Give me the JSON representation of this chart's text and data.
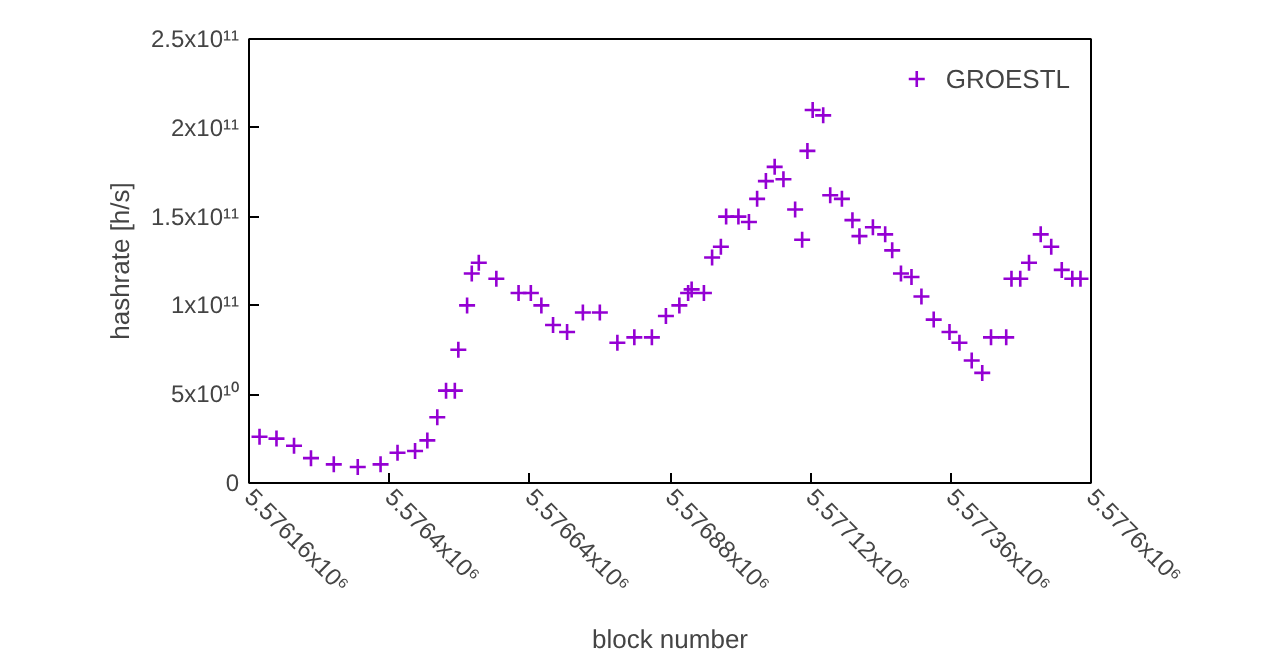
{
  "chart_data": {
    "type": "scatter",
    "xlabel": "block number",
    "ylabel": "hashrate [h/s]",
    "legend": "top right",
    "marker": "cross",
    "xlim": [
      5576160,
      5577600
    ],
    "ylim": [
      0,
      250000000000.0
    ],
    "xticks": [
      {
        "value": 5576160,
        "label": "5.57616x10⁶"
      },
      {
        "value": 5576400,
        "label": "5.5764x10⁶"
      },
      {
        "value": 5576640,
        "label": "5.57664x10⁶"
      },
      {
        "value": 5576880,
        "label": "5.57688x10⁶"
      },
      {
        "value": 5577120,
        "label": "5.57712x10⁶"
      },
      {
        "value": 5577360,
        "label": "5.57736x10⁶"
      },
      {
        "value": 5577600,
        "label": "5.5776x10⁶"
      }
    ],
    "yticks": [
      {
        "value": 0,
        "label": "0"
      },
      {
        "value": 50000000000.0,
        "label": "5x10¹⁰"
      },
      {
        "value": 100000000000.0,
        "label": "1x10¹¹"
      },
      {
        "value": 150000000000.0,
        "label": "1.5x10¹¹"
      },
      {
        "value": 200000000000.0,
        "label": "2x10¹¹"
      },
      {
        "value": 250000000000.0,
        "label": "2.5x10¹¹"
      }
    ],
    "x": [
      5576178,
      5576207,
      5576237,
      5576266,
      5576305,
      5576346,
      5576385,
      5576414,
      5576444,
      5576465,
      5576482,
      5576497,
      5576512,
      5576518,
      5576533,
      5576541,
      5576553,
      5576583,
      5576621,
      5576642,
      5576660,
      5576680,
      5576704,
      5576731,
      5576760,
      5576790,
      5576819,
      5576849,
      5576873,
      5576896,
      5576911,
      5576917,
      5576938,
      5576952,
      5576967,
      5576976,
      5576997,
      5577015,
      5577029,
      5577044,
      5577059,
      5577074,
      5577094,
      5577106,
      5577115,
      5577124,
      5577142,
      5577154,
      5577174,
      5577192,
      5577204,
      5577227,
      5577248,
      5577260,
      5577275,
      5577293,
      5577310,
      5577331,
      5577358,
      5577375,
      5577396,
      5577414,
      5577429,
      5577455,
      5577464,
      5577479,
      5577494,
      5577514,
      5577532,
      5577550,
      5577568,
      5577582
    ],
    "series": [
      {
        "name": "GROESTL",
        "color": "#9400d3",
        "values": [
          26000000000.0,
          25000000000.0,
          21000000000.0,
          14000000000.0,
          10500000000.0,
          9000000000.0,
          10500000000.0,
          17000000000.0,
          18000000000.0,
          24000000000.0,
          37000000000.0,
          52000000000.0,
          52000000000.0,
          75000000000.0,
          100000000000.0,
          118000000000.0,
          124000000000.0,
          115000000000.0,
          107000000000.0,
          107000000000.0,
          100000000000.0,
          89000000000.0,
          85000000000.0,
          96000000000.0,
          96000000000.0,
          79000000000.0,
          82000000000.0,
          82000000000.0,
          94000000000.0,
          100000000000.0,
          107000000000.0,
          109000000000.0,
          107000000000.0,
          127000000000.0,
          133000000000.0,
          150000000000.0,
          150000000000.0,
          147000000000.0,
          160000000000.0,
          170000000000.0,
          178000000000.0,
          171000000000.0,
          154000000000.0,
          137000000000.0,
          187000000000.0,
          210000000000.0,
          207000000000.0,
          162000000000.0,
          160000000000.0,
          148000000000.0,
          139000000000.0,
          144000000000.0,
          140000000000.0,
          131000000000.0,
          118000000000.0,
          116000000000.0,
          105000000000.0,
          92000000000.0,
          85000000000.0,
          79000000000.0,
          69000000000.0,
          62000000000.0,
          82000000000.0,
          82000000000.0,
          115000000000.0,
          115000000000.0,
          124000000000.0,
          140000000000.0,
          133000000000.0,
          120000000000.0,
          115000000000.0,
          115000000000.0
        ]
      }
    ]
  }
}
